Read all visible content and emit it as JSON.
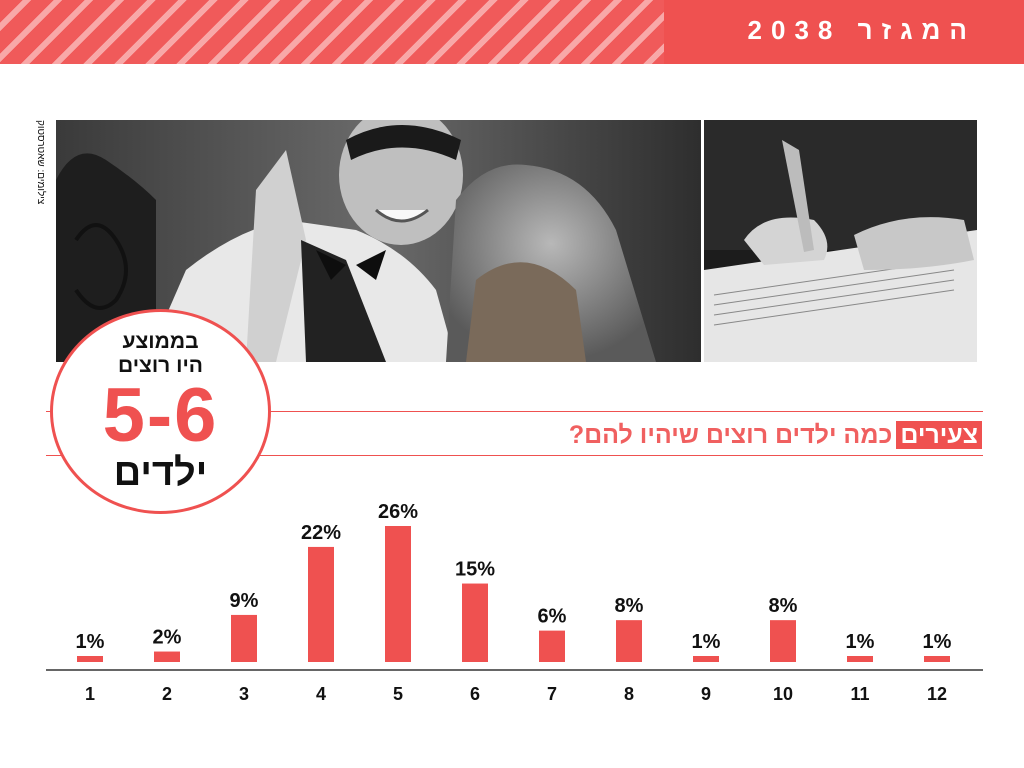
{
  "header": {
    "title": "המגזר 2038"
  },
  "photo_credit": "צילומים: שאטרסטוק",
  "callout": {
    "line1": "בממוצע",
    "line2": "היו רוצים",
    "range": "5-6",
    "unit": "ילדים"
  },
  "question": {
    "highlight": "צעירים",
    "text": "כמה ילדים רוצים שיהיו להם?"
  },
  "colors": {
    "accent": "#ef5150",
    "axis": "#333333"
  },
  "chart_data": {
    "type": "bar",
    "title": "",
    "xlabel": "",
    "ylabel": "",
    "categories": [
      "1",
      "2",
      "3",
      "4",
      "5",
      "6",
      "7",
      "8",
      "9",
      "10",
      "11",
      "12"
    ],
    "values": [
      1,
      2,
      9,
      22,
      26,
      15,
      6,
      8,
      1,
      8,
      1,
      1
    ],
    "value_labels": [
      "1%",
      "2%",
      "9%",
      "22%",
      "26%",
      "15%",
      "6%",
      "8%",
      "1%",
      "8%",
      "1%",
      "1%"
    ],
    "unit": "%",
    "ylim": [
      0,
      26
    ],
    "grid": false,
    "legend": "none"
  }
}
